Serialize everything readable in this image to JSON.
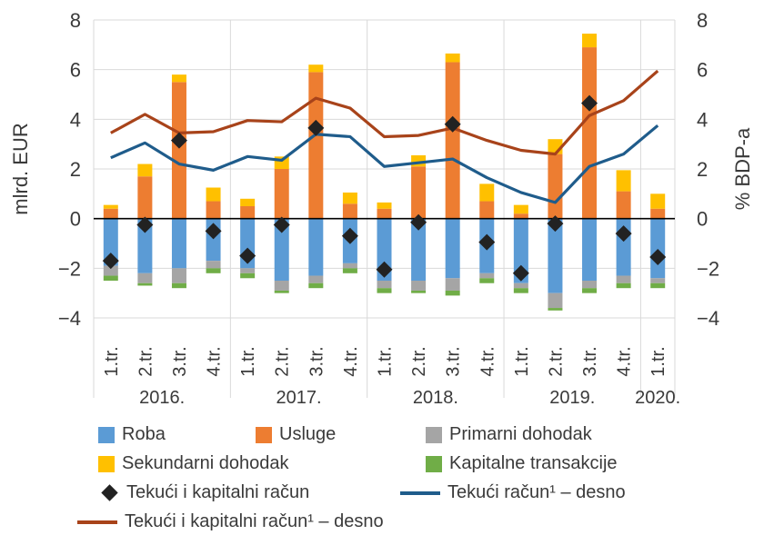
{
  "chart_data": {
    "type": "bar",
    "stacked": true,
    "categories": [
      "1.tr.",
      "2.tr.",
      "3.tr.",
      "4.tr.",
      "1.tr.",
      "2.tr.",
      "3.tr.",
      "4.tr.",
      "1.tr.",
      "2.tr.",
      "3.tr.",
      "4.tr.",
      "1.tr.",
      "2.tr.",
      "3.tr.",
      "4.tr.",
      "1.tr."
    ],
    "year_groups": [
      {
        "label": "2016.",
        "count": 4
      },
      {
        "label": "2017.",
        "count": 4
      },
      {
        "label": "2018.",
        "count": 4
      },
      {
        "label": "2019.",
        "count": 4
      },
      {
        "label": "2020.",
        "count": 1
      }
    ],
    "ylabel_left": "mlrd. EUR",
    "ylabel_right": "% BDP-a",
    "ylim": [
      -4,
      8
    ],
    "yticks": [
      -4,
      -2,
      0,
      2,
      4,
      6,
      8
    ],
    "ytick_labels": [
      "−4",
      "−2",
      "0",
      "2",
      "4",
      "6",
      "8"
    ],
    "series": [
      {
        "name": "Roba",
        "color": "#5b9bd5",
        "values": [
          -1.9,
          -2.2,
          -2.0,
          -1.7,
          -2.0,
          -2.5,
          -2.3,
          -1.8,
          -2.5,
          -2.5,
          -2.4,
          -2.2,
          -2.6,
          -3.0,
          -2.5,
          -2.3,
          -2.4
        ]
      },
      {
        "name": "Usluge",
        "color": "#ed7d31",
        "values": [
          0.4,
          1.7,
          5.5,
          0.7,
          0.5,
          2.0,
          5.9,
          0.6,
          0.4,
          2.1,
          6.3,
          0.7,
          0.2,
          2.6,
          6.9,
          1.1,
          0.4
        ]
      },
      {
        "name": "Primarni dohodak",
        "color": "#a5a5a5",
        "values": [
          -0.4,
          -0.4,
          -0.6,
          -0.3,
          -0.2,
          -0.4,
          -0.3,
          -0.2,
          -0.3,
          -0.4,
          -0.5,
          -0.2,
          -0.2,
          -0.6,
          -0.3,
          -0.3,
          -0.2
        ]
      },
      {
        "name": "Sekundarni dohodak",
        "color": "#ffc000",
        "values": [
          0.15,
          0.5,
          0.3,
          0.55,
          0.3,
          0.5,
          0.3,
          0.45,
          0.25,
          0.45,
          0.35,
          0.7,
          0.35,
          0.6,
          0.55,
          0.85,
          0.6
        ]
      },
      {
        "name": "Kapitalne transakcije",
        "color": "#70ad47",
        "values": [
          -0.2,
          -0.1,
          -0.2,
          -0.2,
          -0.2,
          -0.1,
          -0.2,
          -0.2,
          -0.2,
          -0.1,
          -0.2,
          -0.2,
          -0.2,
          -0.1,
          -0.2,
          -0.2,
          -0.2
        ]
      }
    ],
    "markers": {
      "name": "Tekući i kapitalni račun",
      "color": "#222222",
      "values": [
        -1.7,
        -0.25,
        3.15,
        -0.5,
        -1.5,
        -0.25,
        3.65,
        -0.7,
        -2.05,
        -0.15,
        3.8,
        -0.95,
        -2.2,
        -0.2,
        4.65,
        -0.6,
        -1.55
      ]
    },
    "lines": [
      {
        "name": "Tekući račun¹ – desno",
        "color": "#1f5c8b",
        "values": [
          2.45,
          3.05,
          2.2,
          1.95,
          2.5,
          2.35,
          3.4,
          3.3,
          2.1,
          2.25,
          2.4,
          1.65,
          1.05,
          0.65,
          2.1,
          2.6,
          3.75
        ]
      },
      {
        "name": "Tekući i kapitalni račun¹ – desno",
        "color": "#a8431a",
        "values": [
          3.45,
          4.2,
          3.45,
          3.5,
          3.95,
          3.9,
          4.85,
          4.45,
          3.3,
          3.35,
          3.65,
          3.15,
          2.75,
          2.6,
          4.15,
          4.75,
          5.95
        ]
      }
    ],
    "legend_position": "bottom"
  },
  "legend": {
    "roba": "Roba",
    "usluge": "Usluge",
    "primarni": "Primarni dohodak",
    "sekundarni": "Sekundarni dohodak",
    "kapitalne": "Kapitalne transakcije",
    "tikr": "Tekući i kapitalni račun",
    "tr_desno": "Tekući račun¹ – desno",
    "tikr_desno": "Tekući i kapitalni račun¹ – desno"
  },
  "colors": {
    "roba": "#5b9bd5",
    "usluge": "#ed7d31",
    "primarni": "#a5a5a5",
    "sekundarni": "#ffc000",
    "kapitalne": "#70ad47",
    "marker": "#222222",
    "tr_line": "#1f5c8b",
    "tikr_line": "#a8431a"
  }
}
